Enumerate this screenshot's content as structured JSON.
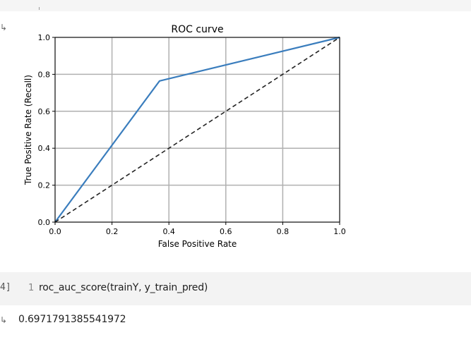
{
  "notebook": {
    "top_output_arrow": "↳",
    "code_cell": {
      "execution_count_label": "4]",
      "line_number": "1",
      "code": "roc_auc_score(trainY, y_train_pred)"
    },
    "result_output_arrow": "↳",
    "result_value": "0.6971791385541972"
  },
  "colors": {
    "roc_line": "#3a7dbd",
    "diagonal": "#222222",
    "grid": "#b0b0b0",
    "axis": "#000000"
  },
  "chart_data": {
    "type": "line",
    "title": "ROC curve",
    "xlabel": "False Positive Rate",
    "ylabel": "True Positive Rate (Recall)",
    "xlim": [
      0.0,
      1.0
    ],
    "ylim": [
      0.0,
      1.0
    ],
    "xticks": [
      "0.0",
      "0.2",
      "0.4",
      "0.6",
      "0.8",
      "1.0"
    ],
    "yticks": [
      "0.0",
      "0.2",
      "0.4",
      "0.6",
      "0.8",
      "1.0"
    ],
    "grid": true,
    "series": [
      {
        "style": "solid",
        "x": [
          0.0,
          0.367,
          1.0
        ],
        "y": [
          0.0,
          0.764,
          1.0
        ]
      },
      {
        "style": "dashed",
        "x": [
          0.0,
          1.0
        ],
        "y": [
          0.0,
          1.0
        ]
      }
    ]
  }
}
